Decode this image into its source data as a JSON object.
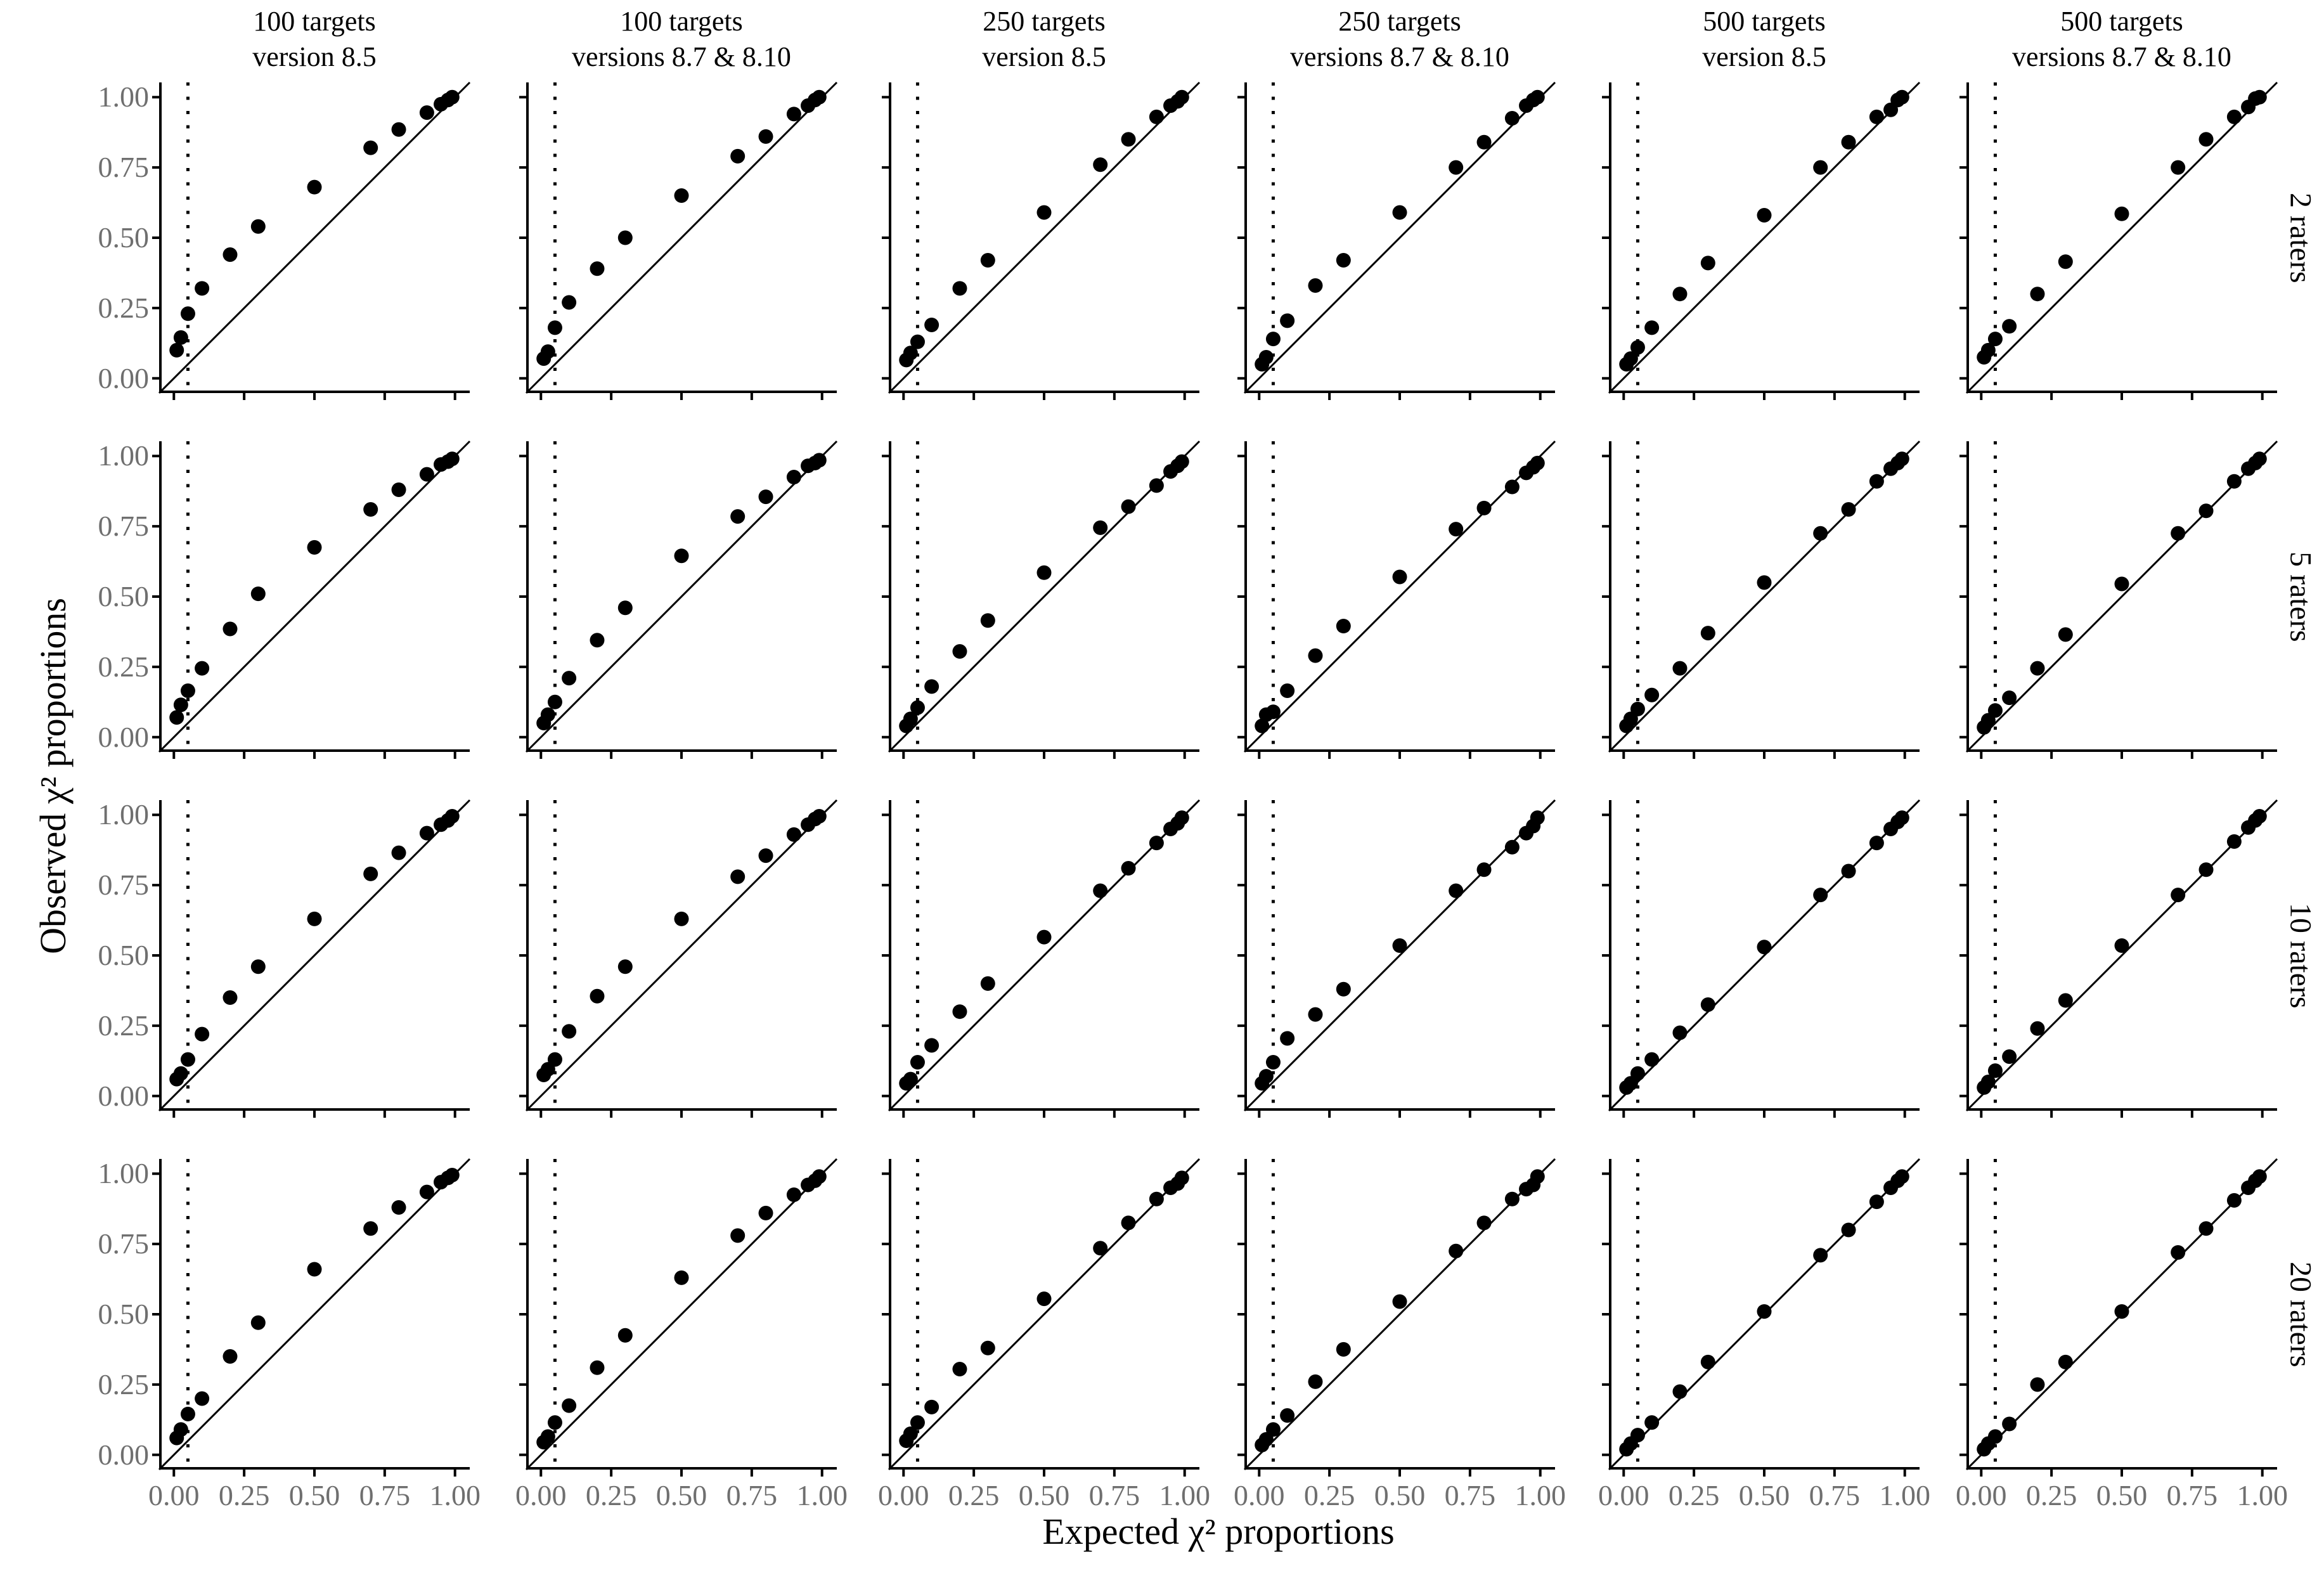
{
  "figure": {
    "x_axis_title": "Expected χ² proportions",
    "y_axis_title": "Observed χ² proportions",
    "x_tick_labels": [
      "0.00",
      "0.25",
      "0.50",
      "0.75",
      "1.00"
    ],
    "y_tick_labels": [
      "1.00",
      "0.75",
      "0.50",
      "0.25",
      "0.00"
    ],
    "column_titles": [
      [
        "100 targets",
        "version 8.5"
      ],
      [
        "100 targets",
        "versions 8.7 & 8.10"
      ],
      [
        "250 targets",
        "version 8.5"
      ],
      [
        "250 targets",
        "versions 8.7 & 8.10"
      ],
      [
        "500 targets",
        "version 8.5"
      ],
      [
        "500 targets",
        "versions 8.7 & 8.10"
      ]
    ],
    "row_labels": [
      "2 raters",
      "5 raters",
      "10 raters",
      "20 raters"
    ],
    "colors": {
      "background": "#ffffff",
      "axis": "#000000",
      "dot": "#000000",
      "tick_label_text": "#6f6f6f",
      "title_text": "#000000"
    }
  },
  "chart_data": {
    "type": "scatter",
    "title": "",
    "xlabel": "Expected χ² proportions",
    "ylabel": "Observed χ² proportions",
    "axis_range": [
      0.0,
      1.0
    ],
    "x_ticks": [
      0.0,
      0.25,
      0.5,
      0.75,
      1.0
    ],
    "y_ticks": [
      0.0,
      0.25,
      0.5,
      0.75,
      1.0
    ],
    "grid": false,
    "legend": "none",
    "reference_line": "identity y=x (solid)",
    "dotted_vline_x": 0.05,
    "marker": "filled black circle",
    "x": [
      0.01,
      0.025,
      0.05,
      0.1,
      0.2,
      0.3,
      0.5,
      0.7,
      0.8,
      0.9,
      0.95,
      0.975,
      0.99
    ],
    "panels": [
      {
        "row": 0,
        "col": 0,
        "raters": "2 raters",
        "targets": "100 targets",
        "version": "version 8.5",
        "observed": [
          0.1,
          0.145,
          0.23,
          0.32,
          0.44,
          0.54,
          0.68,
          0.82,
          0.885,
          0.945,
          0.975,
          0.99,
          1.0
        ]
      },
      {
        "row": 0,
        "col": 1,
        "raters": "2 raters",
        "targets": "100 targets",
        "version": "versions 8.7 & 8.10",
        "observed": [
          0.07,
          0.095,
          0.18,
          0.27,
          0.39,
          0.5,
          0.65,
          0.79,
          0.86,
          0.94,
          0.97,
          0.99,
          1.0
        ]
      },
      {
        "row": 0,
        "col": 2,
        "raters": "2 raters",
        "targets": "250 targets",
        "version": "version 8.5",
        "observed": [
          0.065,
          0.09,
          0.13,
          0.19,
          0.32,
          0.42,
          0.59,
          0.76,
          0.85,
          0.93,
          0.97,
          0.985,
          1.0
        ]
      },
      {
        "row": 0,
        "col": 3,
        "raters": "2 raters",
        "targets": "250 targets",
        "version": "versions 8.7 & 8.10",
        "observed": [
          0.05,
          0.075,
          0.14,
          0.205,
          0.33,
          0.42,
          0.59,
          0.75,
          0.84,
          0.925,
          0.97,
          0.99,
          1.0
        ]
      },
      {
        "row": 0,
        "col": 4,
        "raters": "2 raters",
        "targets": "500 targets",
        "version": "version 8.5",
        "observed": [
          0.05,
          0.07,
          0.11,
          0.18,
          0.3,
          0.41,
          0.58,
          0.75,
          0.84,
          0.93,
          0.955,
          0.99,
          1.0
        ]
      },
      {
        "row": 0,
        "col": 5,
        "raters": "2 raters",
        "targets": "500 targets",
        "version": "versions 8.7 & 8.10",
        "observed": [
          0.075,
          0.1,
          0.14,
          0.185,
          0.3,
          0.415,
          0.585,
          0.75,
          0.85,
          0.93,
          0.965,
          0.995,
          1.0
        ]
      },
      {
        "row": 1,
        "col": 0,
        "raters": "5 raters",
        "targets": "100 targets",
        "version": "version 8.5",
        "observed": [
          0.07,
          0.115,
          0.165,
          0.245,
          0.385,
          0.51,
          0.675,
          0.81,
          0.88,
          0.935,
          0.97,
          0.98,
          0.99
        ]
      },
      {
        "row": 1,
        "col": 1,
        "raters": "5 raters",
        "targets": "100 targets",
        "version": "versions 8.7 & 8.10",
        "observed": [
          0.05,
          0.08,
          0.125,
          0.21,
          0.345,
          0.46,
          0.645,
          0.785,
          0.855,
          0.925,
          0.965,
          0.975,
          0.985
        ]
      },
      {
        "row": 1,
        "col": 2,
        "raters": "5 raters",
        "targets": "250 targets",
        "version": "version 8.5",
        "observed": [
          0.04,
          0.065,
          0.105,
          0.18,
          0.305,
          0.415,
          0.585,
          0.745,
          0.82,
          0.895,
          0.945,
          0.965,
          0.98
        ]
      },
      {
        "row": 1,
        "col": 3,
        "raters": "5 raters",
        "targets": "250 targets",
        "version": "versions 8.7 & 8.10",
        "observed": [
          0.04,
          0.08,
          0.09,
          0.165,
          0.29,
          0.395,
          0.57,
          0.74,
          0.815,
          0.89,
          0.94,
          0.96,
          0.975
        ]
      },
      {
        "row": 1,
        "col": 4,
        "raters": "5 raters",
        "targets": "500 targets",
        "version": "version 8.5",
        "observed": [
          0.04,
          0.065,
          0.1,
          0.15,
          0.245,
          0.37,
          0.55,
          0.725,
          0.81,
          0.91,
          0.955,
          0.975,
          0.99
        ]
      },
      {
        "row": 1,
        "col": 5,
        "raters": "5 raters",
        "targets": "500 targets",
        "version": "versions 8.7 & 8.10",
        "observed": [
          0.035,
          0.06,
          0.095,
          0.14,
          0.245,
          0.365,
          0.545,
          0.725,
          0.805,
          0.91,
          0.955,
          0.975,
          0.99
        ]
      },
      {
        "row": 2,
        "col": 0,
        "raters": "10 raters",
        "targets": "100 targets",
        "version": "version 8.5",
        "observed": [
          0.06,
          0.08,
          0.13,
          0.22,
          0.35,
          0.46,
          0.63,
          0.79,
          0.865,
          0.935,
          0.965,
          0.98,
          0.995
        ]
      },
      {
        "row": 2,
        "col": 1,
        "raters": "10 raters",
        "targets": "100 targets",
        "version": "versions 8.7 & 8.10",
        "observed": [
          0.075,
          0.095,
          0.13,
          0.23,
          0.355,
          0.46,
          0.63,
          0.78,
          0.855,
          0.93,
          0.965,
          0.985,
          0.995
        ]
      },
      {
        "row": 2,
        "col": 2,
        "raters": "10 raters",
        "targets": "250 targets",
        "version": "version 8.5",
        "observed": [
          0.045,
          0.06,
          0.12,
          0.18,
          0.3,
          0.4,
          0.565,
          0.73,
          0.81,
          0.9,
          0.95,
          0.97,
          0.99
        ]
      },
      {
        "row": 2,
        "col": 3,
        "raters": "10 raters",
        "targets": "250 targets",
        "version": "versions 8.7 & 8.10",
        "observed": [
          0.045,
          0.07,
          0.12,
          0.205,
          0.29,
          0.38,
          0.535,
          0.73,
          0.805,
          0.885,
          0.935,
          0.96,
          0.99
        ]
      },
      {
        "row": 2,
        "col": 4,
        "raters": "10 raters",
        "targets": "500 targets",
        "version": "version 8.5",
        "observed": [
          0.03,
          0.045,
          0.08,
          0.13,
          0.225,
          0.325,
          0.53,
          0.715,
          0.8,
          0.9,
          0.95,
          0.975,
          0.99
        ]
      },
      {
        "row": 2,
        "col": 5,
        "raters": "10 raters",
        "targets": "500 targets",
        "version": "versions 8.7 & 8.10",
        "observed": [
          0.03,
          0.05,
          0.09,
          0.14,
          0.24,
          0.34,
          0.535,
          0.715,
          0.805,
          0.905,
          0.955,
          0.98,
          0.995
        ]
      },
      {
        "row": 3,
        "col": 0,
        "raters": "20 raters",
        "targets": "100 targets",
        "version": "version 8.5",
        "observed": [
          0.06,
          0.09,
          0.145,
          0.2,
          0.35,
          0.47,
          0.66,
          0.805,
          0.88,
          0.935,
          0.97,
          0.985,
          0.995
        ]
      },
      {
        "row": 3,
        "col": 1,
        "raters": "20 raters",
        "targets": "100 targets",
        "version": "versions 8.7 & 8.10",
        "observed": [
          0.045,
          0.065,
          0.115,
          0.175,
          0.31,
          0.425,
          0.63,
          0.78,
          0.86,
          0.925,
          0.96,
          0.975,
          0.99
        ]
      },
      {
        "row": 3,
        "col": 2,
        "raters": "20 raters",
        "targets": "250 targets",
        "version": "version 8.5",
        "observed": [
          0.05,
          0.075,
          0.115,
          0.17,
          0.305,
          0.38,
          0.555,
          0.735,
          0.825,
          0.91,
          0.95,
          0.965,
          0.985
        ]
      },
      {
        "row": 3,
        "col": 3,
        "raters": "20 raters",
        "targets": "250 targets",
        "version": "versions 8.7 & 8.10",
        "observed": [
          0.035,
          0.055,
          0.09,
          0.14,
          0.26,
          0.375,
          0.545,
          0.725,
          0.825,
          0.91,
          0.945,
          0.96,
          0.99
        ]
      },
      {
        "row": 3,
        "col": 4,
        "raters": "20 raters",
        "targets": "500 targets",
        "version": "version 8.5",
        "observed": [
          0.02,
          0.04,
          0.07,
          0.115,
          0.225,
          0.33,
          0.51,
          0.71,
          0.8,
          0.9,
          0.95,
          0.975,
          0.99
        ]
      },
      {
        "row": 3,
        "col": 5,
        "raters": "20 raters",
        "targets": "500 targets",
        "version": "versions 8.7 & 8.10",
        "observed": [
          0.02,
          0.04,
          0.065,
          0.11,
          0.25,
          0.33,
          0.51,
          0.72,
          0.805,
          0.905,
          0.95,
          0.975,
          0.99
        ]
      }
    ]
  }
}
